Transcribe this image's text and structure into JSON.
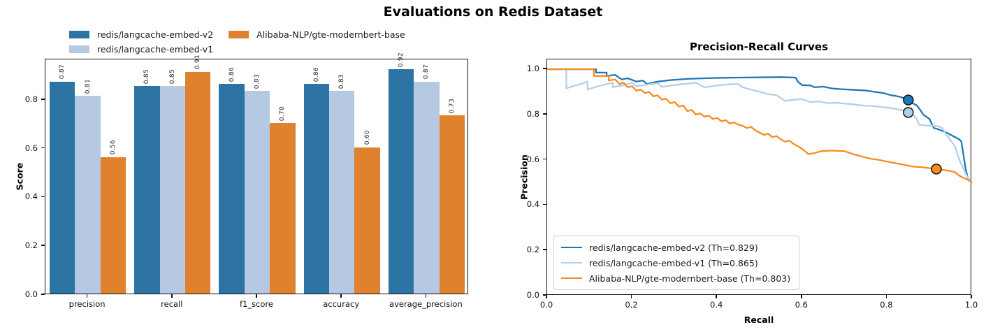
{
  "figure": {
    "title": "Evaluations on Redis Dataset",
    "background": "#ffffff"
  },
  "chart_data": [
    {
      "type": "bar",
      "name": "metrics-bar-chart",
      "ylabel": "Score",
      "ylim": [
        0,
        0.966
      ],
      "yticks": [
        "0.0",
        "0.2",
        "0.4",
        "0.6",
        "0.8"
      ],
      "grid": false,
      "legend_position": "above-left, 2 columns, frameless",
      "categories": [
        "precision",
        "recall",
        "f1_score",
        "accuracy",
        "average_precision"
      ],
      "series": [
        {
          "name": "redis/langcache-embed-v2",
          "color": "#2d73a3",
          "values": [
            0.87,
            0.85,
            0.86,
            0.86,
            0.92
          ],
          "labels": [
            "0.87",
            "0.85",
            "0.86",
            "0.86",
            "0.92"
          ]
        },
        {
          "name": "redis/langcache-embed-v1",
          "color": "#b5c9e2",
          "values": [
            0.81,
            0.85,
            0.83,
            0.83,
            0.87
          ],
          "labels": [
            "0.81",
            "0.85",
            "0.83",
            "0.83",
            "0.87"
          ]
        },
        {
          "name": "Alibaba-NLP/gte-modernbert-base",
          "color": "#e0812d",
          "values": [
            0.56,
            0.91,
            0.7,
            0.6,
            0.73
          ],
          "labels": [
            "0.56",
            "0.91",
            "0.70",
            "0.60",
            "0.73"
          ]
        }
      ],
      "bar_label_rotation": 90
    },
    {
      "type": "line",
      "name": "precision-recall-curves",
      "title": "Precision-Recall Curves",
      "xlabel": "Recall",
      "ylabel": "Precision",
      "xlim": [
        0.0,
        1.0
      ],
      "ylim": [
        0.0,
        1.043
      ],
      "xticks": [
        "0.0",
        "0.2",
        "0.4",
        "0.6",
        "0.8",
        "1.0"
      ],
      "yticks": [
        "0.0",
        "0.2",
        "0.4",
        "0.6",
        "0.8",
        "1.0"
      ],
      "grid": false,
      "legend_position": "lower left, framed",
      "series": [
        {
          "name": "redis/langcache-embed-v2 (Th=0.829)",
          "color": "#1f77b4",
          "operating_point": [
            0.85,
            0.864
          ],
          "points": [
            [
              0,
              1.0
            ],
            [
              0.115,
              1.0
            ],
            [
              0.115,
              0.985
            ],
            [
              0.14,
              0.985
            ],
            [
              0.14,
              0.97
            ],
            [
              0.16,
              0.975
            ],
            [
              0.175,
              0.955
            ],
            [
              0.19,
              0.96
            ],
            [
              0.21,
              0.945
            ],
            [
              0.225,
              0.95
            ],
            [
              0.235,
              0.935
            ],
            [
              0.26,
              0.945
            ],
            [
              0.29,
              0.952
            ],
            [
              0.33,
              0.957
            ],
            [
              0.37,
              0.96
            ],
            [
              0.41,
              0.962
            ],
            [
              0.45,
              0.963
            ],
            [
              0.5,
              0.964
            ],
            [
              0.55,
              0.965
            ],
            [
              0.585,
              0.963
            ],
            [
              0.59,
              0.945
            ],
            [
              0.6,
              0.93
            ],
            [
              0.62,
              0.928
            ],
            [
              0.63,
              0.92
            ],
            [
              0.65,
              0.923
            ],
            [
              0.67,
              0.915
            ],
            [
              0.69,
              0.912
            ],
            [
              0.71,
              0.91
            ],
            [
              0.73,
              0.908
            ],
            [
              0.75,
              0.906
            ],
            [
              0.77,
              0.9
            ],
            [
              0.79,
              0.895
            ],
            [
              0.8,
              0.89
            ],
            [
              0.81,
              0.885
            ],
            [
              0.82,
              0.882
            ],
            [
              0.83,
              0.878
            ],
            [
              0.84,
              0.872
            ],
            [
              0.85,
              0.864
            ],
            [
              0.86,
              0.85
            ],
            [
              0.87,
              0.84
            ],
            [
              0.88,
              0.815
            ],
            [
              0.885,
              0.8
            ],
            [
              0.9,
              0.78
            ],
            [
              0.91,
              0.74
            ],
            [
              0.92,
              0.735
            ],
            [
              0.94,
              0.72
            ],
            [
              0.95,
              0.71
            ],
            [
              0.96,
              0.7
            ],
            [
              0.97,
              0.69
            ],
            [
              0.975,
              0.68
            ],
            [
              0.98,
              0.62
            ],
            [
              0.985,
              0.56
            ],
            [
              0.99,
              0.52
            ],
            [
              1.0,
              0.5
            ]
          ]
        },
        {
          "name": "redis/langcache-embed-v1 (Th=0.865)",
          "color": "#b4cfe8",
          "operating_point": [
            0.85,
            0.809
          ],
          "points": [
            [
              0,
              1.0
            ],
            [
              0.045,
              1.0
            ],
            [
              0.045,
              0.915
            ],
            [
              0.06,
              0.925
            ],
            [
              0.08,
              0.935
            ],
            [
              0.095,
              0.945
            ],
            [
              0.095,
              0.91
            ],
            [
              0.12,
              0.925
            ],
            [
              0.14,
              0.935
            ],
            [
              0.155,
              0.94
            ],
            [
              0.155,
              0.92
            ],
            [
              0.18,
              0.93
            ],
            [
              0.2,
              0.94
            ],
            [
              0.21,
              0.925
            ],
            [
              0.24,
              0.933
            ],
            [
              0.26,
              0.938
            ],
            [
              0.27,
              0.922
            ],
            [
              0.3,
              0.93
            ],
            [
              0.33,
              0.936
            ],
            [
              0.35,
              0.94
            ],
            [
              0.37,
              0.92
            ],
            [
              0.4,
              0.928
            ],
            [
              0.43,
              0.933
            ],
            [
              0.45,
              0.935
            ],
            [
              0.46,
              0.92
            ],
            [
              0.48,
              0.91
            ],
            [
              0.5,
              0.9
            ],
            [
              0.52,
              0.89
            ],
            [
              0.54,
              0.885
            ],
            [
              0.56,
              0.86
            ],
            [
              0.58,
              0.865
            ],
            [
              0.6,
              0.868
            ],
            [
              0.62,
              0.855
            ],
            [
              0.64,
              0.858
            ],
            [
              0.66,
              0.85
            ],
            [
              0.68,
              0.852
            ],
            [
              0.7,
              0.848
            ],
            [
              0.72,
              0.845
            ],
            [
              0.74,
              0.84
            ],
            [
              0.76,
              0.838
            ],
            [
              0.78,
              0.835
            ],
            [
              0.8,
              0.83
            ],
            [
              0.82,
              0.825
            ],
            [
              0.84,
              0.817
            ],
            [
              0.85,
              0.809
            ],
            [
              0.86,
              0.8
            ],
            [
              0.87,
              0.78
            ],
            [
              0.875,
              0.755
            ],
            [
              0.89,
              0.752
            ],
            [
              0.91,
              0.75
            ],
            [
              0.92,
              0.748
            ],
            [
              0.93,
              0.74
            ],
            [
              0.94,
              0.71
            ],
            [
              0.95,
              0.685
            ],
            [
              0.96,
              0.66
            ],
            [
              0.97,
              0.6
            ],
            [
              0.98,
              0.56
            ],
            [
              0.99,
              0.52
            ],
            [
              1.0,
              0.5
            ]
          ]
        },
        {
          "name": "Alibaba-NLP/gte-modernbert-base (Th=0.803)",
          "color": "#fb8a1e",
          "operating_point": [
            0.916,
            0.559
          ],
          "points": [
            [
              0,
              1.0
            ],
            [
              0.11,
              1.0
            ],
            [
              0.11,
              0.97
            ],
            [
              0.145,
              0.97
            ],
            [
              0.145,
              0.95
            ],
            [
              0.16,
              0.955
            ],
            [
              0.17,
              0.935
            ],
            [
              0.18,
              0.94
            ],
            [
              0.19,
              0.92
            ],
            [
              0.2,
              0.925
            ],
            [
              0.21,
              0.905
            ],
            [
              0.22,
              0.91
            ],
            [
              0.23,
              0.895
            ],
            [
              0.24,
              0.9
            ],
            [
              0.25,
              0.88
            ],
            [
              0.26,
              0.885
            ],
            [
              0.27,
              0.865
            ],
            [
              0.28,
              0.87
            ],
            [
              0.29,
              0.85
            ],
            [
              0.3,
              0.855
            ],
            [
              0.31,
              0.835
            ],
            [
              0.32,
              0.84
            ],
            [
              0.33,
              0.815
            ],
            [
              0.34,
              0.82
            ],
            [
              0.35,
              0.8
            ],
            [
              0.36,
              0.805
            ],
            [
              0.37,
              0.79
            ],
            [
              0.38,
              0.795
            ],
            [
              0.39,
              0.78
            ],
            [
              0.4,
              0.785
            ],
            [
              0.41,
              0.77
            ],
            [
              0.42,
              0.775
            ],
            [
              0.43,
              0.76
            ],
            [
              0.44,
              0.765
            ],
            [
              0.45,
              0.755
            ],
            [
              0.46,
              0.75
            ],
            [
              0.47,
              0.74
            ],
            [
              0.48,
              0.745
            ],
            [
              0.49,
              0.73
            ],
            [
              0.5,
              0.72
            ],
            [
              0.51,
              0.71
            ],
            [
              0.52,
              0.715
            ],
            [
              0.53,
              0.7
            ],
            [
              0.54,
              0.705
            ],
            [
              0.55,
              0.69
            ],
            [
              0.56,
              0.68
            ],
            [
              0.57,
              0.685
            ],
            [
              0.58,
              0.67
            ],
            [
              0.59,
              0.66
            ],
            [
              0.6,
              0.648
            ],
            [
              0.615,
              0.625
            ],
            [
              0.63,
              0.63
            ],
            [
              0.645,
              0.638
            ],
            [
              0.66,
              0.64
            ],
            [
              0.68,
              0.64
            ],
            [
              0.7,
              0.638
            ],
            [
              0.72,
              0.625
            ],
            [
              0.74,
              0.615
            ],
            [
              0.76,
              0.605
            ],
            [
              0.78,
              0.6
            ],
            [
              0.8,
              0.592
            ],
            [
              0.82,
              0.585
            ],
            [
              0.84,
              0.578
            ],
            [
              0.86,
              0.57
            ],
            [
              0.88,
              0.568
            ],
            [
              0.9,
              0.563
            ],
            [
              0.916,
              0.559
            ],
            [
              0.93,
              0.556
            ],
            [
              0.95,
              0.55
            ],
            [
              0.96,
              0.545
            ],
            [
              0.97,
              0.53
            ],
            [
              0.98,
              0.52
            ],
            [
              0.99,
              0.512
            ],
            [
              1.0,
              0.5
            ]
          ]
        }
      ]
    }
  ]
}
